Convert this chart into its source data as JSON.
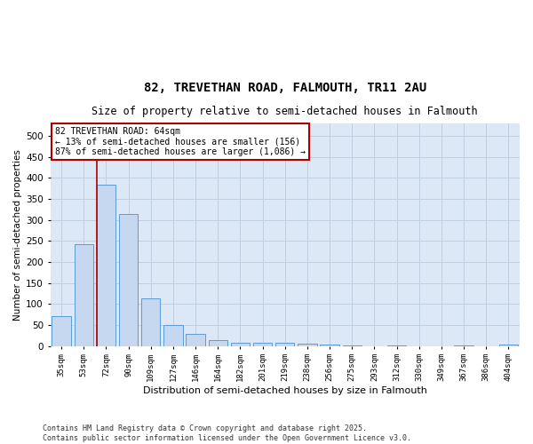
{
  "title_line1": "82, TREVETHAN ROAD, FALMOUTH, TR11 2AU",
  "title_line2": "Size of property relative to semi-detached houses in Falmouth",
  "xlabel": "Distribution of semi-detached houses by size in Falmouth",
  "ylabel": "Number of semi-detached properties",
  "categories": [
    "35sqm",
    "53sqm",
    "72sqm",
    "90sqm",
    "109sqm",
    "127sqm",
    "146sqm",
    "164sqm",
    "182sqm",
    "201sqm",
    "219sqm",
    "238sqm",
    "256sqm",
    "275sqm",
    "293sqm",
    "312sqm",
    "330sqm",
    "349sqm",
    "367sqm",
    "386sqm",
    "404sqm"
  ],
  "values": [
    72,
    243,
    385,
    315,
    113,
    50,
    29,
    13,
    7,
    7,
    8,
    6,
    3,
    1,
    0,
    2,
    0,
    0,
    1,
    0,
    3
  ],
  "bar_color": "#c5d8f0",
  "bar_edge_color": "#5b9bd5",
  "vline_x": 1.58,
  "vline_color": "#aa0000",
  "annotation_box_color": "#aa0000",
  "ylim": [
    0,
    530
  ],
  "yticks": [
    0,
    50,
    100,
    150,
    200,
    250,
    300,
    350,
    400,
    450,
    500
  ],
  "grid_color": "#c0cfdf",
  "bg_color": "#dce8f5",
  "marker_line1": "82 TREVETHAN ROAD: 64sqm",
  "marker_line2": "← 13% of semi-detached houses are smaller (156)",
  "marker_line3": "87% of semi-detached houses are larger (1,086) →",
  "footnote1": "Contains HM Land Registry data © Crown copyright and database right 2025.",
  "footnote2": "Contains public sector information licensed under the Open Government Licence v3.0."
}
